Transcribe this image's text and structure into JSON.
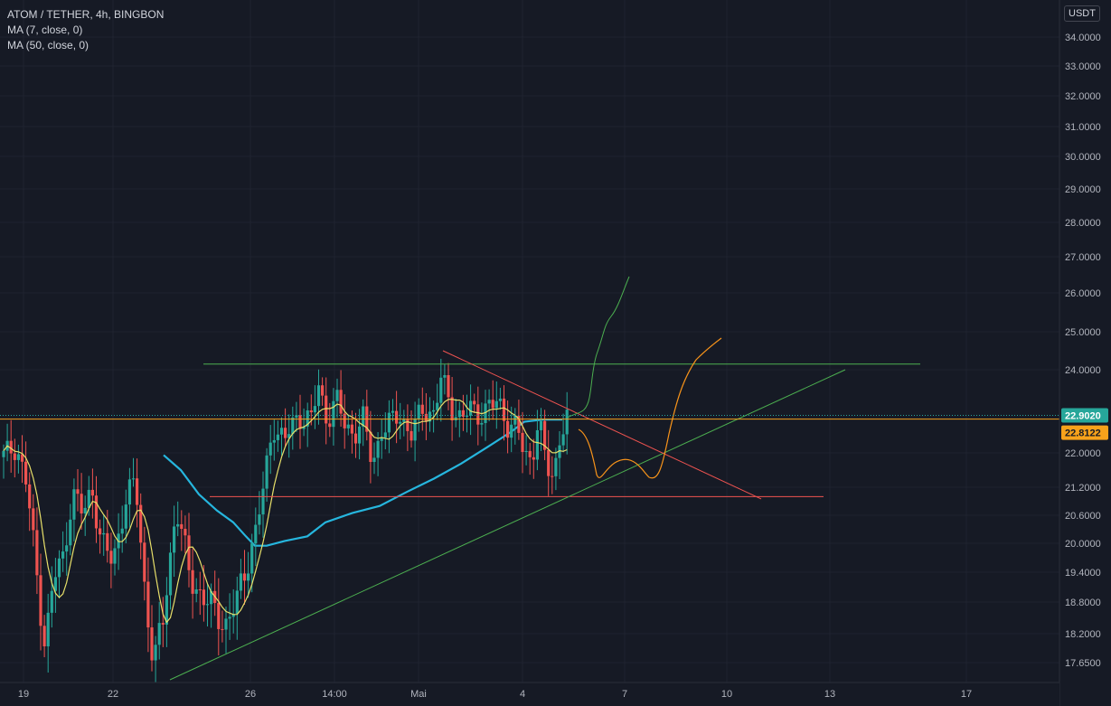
{
  "header": {
    "symbol": "ATOM / TETHER, 4h, BINGBON",
    "indicators": [
      "MA (7, close, 0)",
      "MA (50, close, 0)"
    ],
    "currency": "USDT"
  },
  "colors": {
    "background": "#161a25",
    "up": "#26a69a",
    "down": "#ef5350",
    "ma7": "#e8e06a",
    "ma50": "#26b6de",
    "last_price": "#26a69a",
    "ref_price": "#f7a21b",
    "grid": "#1f2330",
    "drawing_green": "#4caf50",
    "drawing_red": "#ef5350",
    "drawing_orange": "#f7931a"
  },
  "chart_data": {
    "type": "candlestick",
    "title": "ATOM / TETHER, 4h, BINGBON",
    "x_tick_labels": [
      "19",
      "22",
      "26",
      "14:00",
      "Mai",
      "4",
      "7",
      "10",
      "13",
      "17"
    ],
    "y_tick_labels": [
      "34.0000",
      "33.0000",
      "32.0000",
      "31.0000",
      "30.0000",
      "29.0000",
      "28.0000",
      "27.0000",
      "26.0000",
      "25.0000",
      "24.0000",
      "22.0000",
      "21.2000",
      "20.6000",
      "20.0000",
      "19.4000",
      "18.8000",
      "18.2000",
      "17.6500"
    ],
    "price_labels": [
      {
        "label": "22.9020",
        "value": 22.902,
        "kind": "last"
      },
      {
        "label": "22.8122",
        "value": 22.8122,
        "kind": "reference"
      }
    ],
    "series": [
      {
        "name": "MA (7, close, 0)",
        "kind": "ma"
      },
      {
        "name": "MA (50, close, 0)",
        "kind": "ma"
      }
    ],
    "drawings": [
      {
        "kind": "horizontal_resistance",
        "color": "green",
        "value": 24.15
      },
      {
        "kind": "horizontal_support",
        "color": "red",
        "value": 21.0
      },
      {
        "kind": "ascending_trendline",
        "color": "green",
        "from": 17.45,
        "to": 24.0
      },
      {
        "kind": "descending_trendline",
        "color": "red",
        "from": 24.5,
        "to": 20.95
      },
      {
        "kind": "projection_path",
        "color": "green"
      },
      {
        "kind": "projection_path",
        "color": "orange"
      }
    ]
  }
}
